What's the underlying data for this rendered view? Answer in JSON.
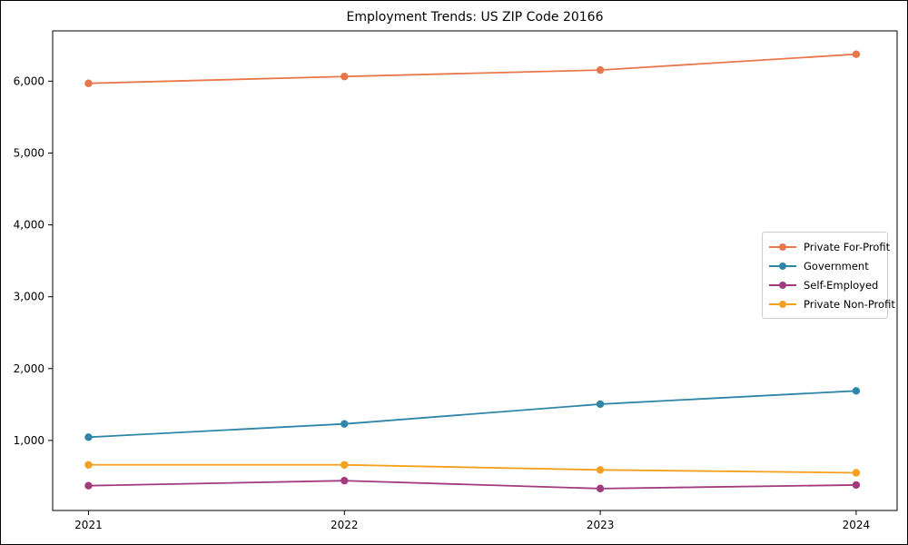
{
  "chart_data": {
    "type": "line",
    "title": "Employment Trends: US ZIP Code 20166",
    "x": [
      2021,
      2022,
      2023,
      2024
    ],
    "x_tick_labels": [
      "2021",
      "2022",
      "2023",
      "2024"
    ],
    "series": [
      {
        "name": "Private For-Profit",
        "color": "#e8784b",
        "values": [
          5970,
          6065,
          6155,
          6375
        ]
      },
      {
        "name": "Government",
        "color": "#2e86a8",
        "values": [
          1045,
          1230,
          1505,
          1690
        ]
      },
      {
        "name": "Self-Employed",
        "color": "#a23a7f",
        "values": [
          370,
          440,
          330,
          380
        ]
      },
      {
        "name": "Private Non-Profit",
        "color": "#f5a01e",
        "values": [
          660,
          660,
          590,
          550
        ]
      }
    ],
    "yticks": [
      1000,
      2000,
      3000,
      4000,
      5000,
      6000
    ],
    "ytick_labels": [
      "1,000",
      "2,000",
      "3,000",
      "4,000",
      "5,000",
      "6,000"
    ],
    "ylim": [
      25,
      6700
    ],
    "xlim": [
      2020.86,
      2024.16
    ],
    "xlabel": "",
    "ylabel": "",
    "grid": false,
    "legend_position": "right-center",
    "marker": "circle",
    "axis_color": "#000000",
    "background_color": "#ffffff"
  }
}
